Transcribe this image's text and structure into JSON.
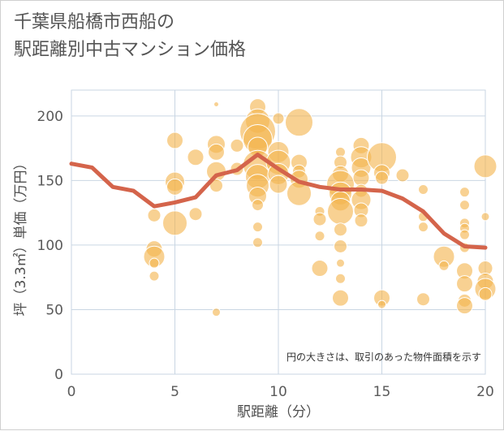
{
  "title_lines": [
    "千葉県船橋市西船の",
    "駅距離別中古マンション価格"
  ],
  "chart_data": {
    "type": "scatter",
    "xlabel": "駅距離（分）",
    "ylabel": "坪（3.3㎡）単価（万円）",
    "xlim": [
      0,
      20
    ],
    "ylim": [
      0,
      220
    ],
    "x_ticks": [
      "0",
      "5",
      "10",
      "15",
      "20"
    ],
    "y_ticks": [
      "0",
      "50",
      "100",
      "150",
      "200"
    ],
    "x_tick_values": [
      0,
      5,
      10,
      15,
      20
    ],
    "y_tick_values": [
      0,
      50,
      100,
      150,
      200
    ],
    "grid": true,
    "annotation": "円の大きさは、取引のあった物件面積を示す",
    "bubble_color": "#f3b54f",
    "line_color": "#d4644b",
    "line": {
      "x": [
        0,
        1,
        2,
        3,
        4,
        5,
        6,
        7,
        8,
        9,
        10,
        11,
        12,
        13,
        14,
        15,
        16,
        17,
        18,
        19,
        20
      ],
      "y": [
        163,
        160,
        145,
        142,
        130,
        133,
        137,
        154,
        158,
        170,
        159,
        149,
        145,
        143,
        143,
        142,
        136,
        126,
        109,
        99,
        98
      ]
    },
    "bubbles": [
      {
        "x": 4,
        "y": 123,
        "s": 8
      },
      {
        "x": 4,
        "y": 97,
        "s": 10
      },
      {
        "x": 4,
        "y": 91,
        "s": 13
      },
      {
        "x": 4,
        "y": 86,
        "s": 6
      },
      {
        "x": 4,
        "y": 76,
        "s": 6
      },
      {
        "x": 5,
        "y": 181,
        "s": 10
      },
      {
        "x": 5,
        "y": 149,
        "s": 12
      },
      {
        "x": 5,
        "y": 145,
        "s": 10
      },
      {
        "x": 5,
        "y": 117,
        "s": 15
      },
      {
        "x": 6,
        "y": 168,
        "s": 10
      },
      {
        "x": 6,
        "y": 124,
        "s": 8
      },
      {
        "x": 7,
        "y": 209,
        "s": 3
      },
      {
        "x": 7,
        "y": 178,
        "s": 11
      },
      {
        "x": 7,
        "y": 172,
        "s": 10
      },
      {
        "x": 7,
        "y": 157,
        "s": 12
      },
      {
        "x": 7,
        "y": 146,
        "s": 8
      },
      {
        "x": 7,
        "y": 48,
        "s": 5
      },
      {
        "x": 8,
        "y": 177,
        "s": 8
      },
      {
        "x": 8,
        "y": 159,
        "s": 8
      },
      {
        "x": 9,
        "y": 207,
        "s": 10
      },
      {
        "x": 9,
        "y": 196,
        "s": 15
      },
      {
        "x": 9,
        "y": 188,
        "s": 22
      },
      {
        "x": 9,
        "y": 182,
        "s": 18
      },
      {
        "x": 9,
        "y": 176,
        "s": 12
      },
      {
        "x": 9,
        "y": 162,
        "s": 18
      },
      {
        "x": 9,
        "y": 153,
        "s": 15
      },
      {
        "x": 9,
        "y": 146,
        "s": 14
      },
      {
        "x": 9,
        "y": 138,
        "s": 11
      },
      {
        "x": 9,
        "y": 131,
        "s": 7
      },
      {
        "x": 9,
        "y": 114,
        "s": 6
      },
      {
        "x": 9,
        "y": 102,
        "s": 6
      },
      {
        "x": 10,
        "y": 198,
        "s": 7
      },
      {
        "x": 10,
        "y": 172,
        "s": 13
      },
      {
        "x": 10,
        "y": 164,
        "s": 15
      },
      {
        "x": 10,
        "y": 155,
        "s": 13
      },
      {
        "x": 10,
        "y": 147,
        "s": 11
      },
      {
        "x": 11,
        "y": 195,
        "s": 17
      },
      {
        "x": 11,
        "y": 164,
        "s": 10
      },
      {
        "x": 11,
        "y": 157,
        "s": 8
      },
      {
        "x": 11,
        "y": 151,
        "s": 11
      },
      {
        "x": 11,
        "y": 140,
        "s": 15
      },
      {
        "x": 12,
        "y": 126,
        "s": 6
      },
      {
        "x": 12,
        "y": 120,
        "s": 8
      },
      {
        "x": 12,
        "y": 107,
        "s": 6
      },
      {
        "x": 12,
        "y": 82,
        "s": 10
      },
      {
        "x": 13,
        "y": 172,
        "s": 6
      },
      {
        "x": 13,
        "y": 164,
        "s": 8
      },
      {
        "x": 13,
        "y": 155,
        "s": 10
      },
      {
        "x": 13,
        "y": 147,
        "s": 17
      },
      {
        "x": 13,
        "y": 140,
        "s": 14
      },
      {
        "x": 13,
        "y": 134,
        "s": 12
      },
      {
        "x": 13,
        "y": 126,
        "s": 16
      },
      {
        "x": 13,
        "y": 112,
        "s": 8
      },
      {
        "x": 13,
        "y": 99,
        "s": 8
      },
      {
        "x": 13,
        "y": 86,
        "s": 5
      },
      {
        "x": 13,
        "y": 74,
        "s": 6
      },
      {
        "x": 13,
        "y": 59,
        "s": 10
      },
      {
        "x": 14,
        "y": 177,
        "s": 10
      },
      {
        "x": 14,
        "y": 168,
        "s": 13
      },
      {
        "x": 14,
        "y": 160,
        "s": 12
      },
      {
        "x": 14,
        "y": 152,
        "s": 10
      },
      {
        "x": 14,
        "y": 142,
        "s": 8
      },
      {
        "x": 14,
        "y": 135,
        "s": 12
      },
      {
        "x": 14,
        "y": 127,
        "s": 9
      },
      {
        "x": 14,
        "y": 119,
        "s": 8
      },
      {
        "x": 15,
        "y": 168,
        "s": 18
      },
      {
        "x": 15,
        "y": 156,
        "s": 10
      },
      {
        "x": 15,
        "y": 152,
        "s": 8
      },
      {
        "x": 15,
        "y": 59,
        "s": 10
      },
      {
        "x": 15,
        "y": 54,
        "s": 5
      },
      {
        "x": 16,
        "y": 154,
        "s": 8
      },
      {
        "x": 17,
        "y": 143,
        "s": 6
      },
      {
        "x": 17,
        "y": 122,
        "s": 6
      },
      {
        "x": 17,
        "y": 114,
        "s": 6
      },
      {
        "x": 17,
        "y": 58,
        "s": 8
      },
      {
        "x": 18,
        "y": 91,
        "s": 13
      },
      {
        "x": 18,
        "y": 84,
        "s": 6
      },
      {
        "x": 19,
        "y": 141,
        "s": 6
      },
      {
        "x": 19,
        "y": 131,
        "s": 6
      },
      {
        "x": 19,
        "y": 117,
        "s": 6
      },
      {
        "x": 19,
        "y": 113,
        "s": 6
      },
      {
        "x": 19,
        "y": 108,
        "s": 6
      },
      {
        "x": 19,
        "y": 98,
        "s": 6
      },
      {
        "x": 19,
        "y": 80,
        "s": 10
      },
      {
        "x": 19,
        "y": 70,
        "s": 10
      },
      {
        "x": 19,
        "y": 57,
        "s": 8
      },
      {
        "x": 19,
        "y": 53,
        "s": 10
      },
      {
        "x": 20,
        "y": 161,
        "s": 14
      },
      {
        "x": 20,
        "y": 122,
        "s": 5
      },
      {
        "x": 20,
        "y": 82,
        "s": 9
      },
      {
        "x": 20,
        "y": 72,
        "s": 10
      },
      {
        "x": 20,
        "y": 66,
        "s": 13
      },
      {
        "x": 20,
        "y": 62,
        "s": 8
      }
    ]
  }
}
